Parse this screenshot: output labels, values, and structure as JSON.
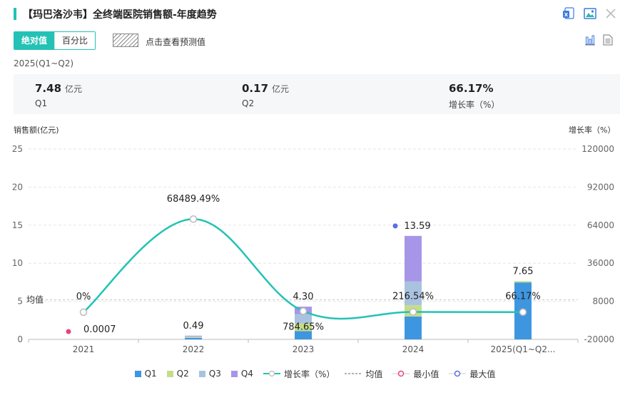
{
  "title": "【玛巴洛沙韦】全终端医院销售额-年度趋势",
  "toolbar": {
    "excel_icon": "excel-icon",
    "image_icon": "image-icon",
    "close_icon": "close-icon",
    "chart_icon": "bar-chart-icon",
    "table_icon": "document-icon"
  },
  "mode_tabs": [
    {
      "label": "绝对值",
      "active": true
    },
    {
      "label": "百分比",
      "active": false
    }
  ],
  "forecast_label": "点击查看预测值",
  "period": "2025(Q1~Q2)",
  "kpis": [
    {
      "value": "7.48",
      "unit": "亿元",
      "label": "Q1"
    },
    {
      "value": "0.17",
      "unit": "亿元",
      "label": "Q2"
    },
    {
      "value": "66.17%",
      "unit": "",
      "label": "增长率（%）"
    }
  ],
  "colors": {
    "accent": "#23c2b5",
    "q1": "#3f96e0",
    "q2": "#c5dd8b",
    "q3": "#a9c2e0",
    "q4": "#a796e8",
    "growth": "#23c2b5",
    "min": "#e8457e",
    "max": "#5b6fe0"
  },
  "chart_data": {
    "type": "bar",
    "stacked": true,
    "ylabel": "销售额(亿元)",
    "y2label": "增长率（%）",
    "ylim": [
      0,
      25
    ],
    "y2lim": [
      -20000,
      120000
    ],
    "yticks": [
      "0",
      "5",
      "10",
      "15",
      "20",
      "25"
    ],
    "y2ticks": [
      "-20000",
      "8000",
      "36000",
      "64000",
      "92000",
      "120000"
    ],
    "categories": [
      "2021",
      "2022",
      "2023",
      "2024",
      "2025(Q1~Q2..."
    ],
    "series": [
      {
        "name": "Q1",
        "values": [
          0.0007,
          0.2,
          1.1,
          3.0,
          7.48
        ]
      },
      {
        "name": "Q2",
        "values": [
          0,
          0.1,
          1.0,
          1.5,
          0.17
        ]
      },
      {
        "name": "Q3",
        "values": [
          0,
          0.1,
          1.2,
          3.1,
          0
        ]
      },
      {
        "name": "Q4",
        "values": [
          0,
          0.09,
          1.0,
          5.99,
          0
        ]
      }
    ],
    "totals": [
      "0.0007",
      "0.49",
      "4.30",
      "13.59",
      "7.65"
    ],
    "growth": {
      "name": "增长率（%）",
      "values": [
        0,
        68489.49,
        784.65,
        216.54,
        66.17
      ],
      "labels": [
        "0%",
        "68489.49%",
        "784.65%",
        "216.54%",
        "66.17%"
      ]
    },
    "average": {
      "name": "均值",
      "label": "均值",
      "value": 5.2
    },
    "min_marker": {
      "name": "最小值",
      "category": "2021",
      "value": 0.0007
    },
    "max_marker": {
      "name": "最大值",
      "category": "2024",
      "value": 13.59
    },
    "legend": [
      "Q1",
      "Q2",
      "Q3",
      "Q4",
      "增长率（%）",
      "均值",
      "最小值",
      "最大值"
    ],
    "legend_position": "bottom"
  }
}
